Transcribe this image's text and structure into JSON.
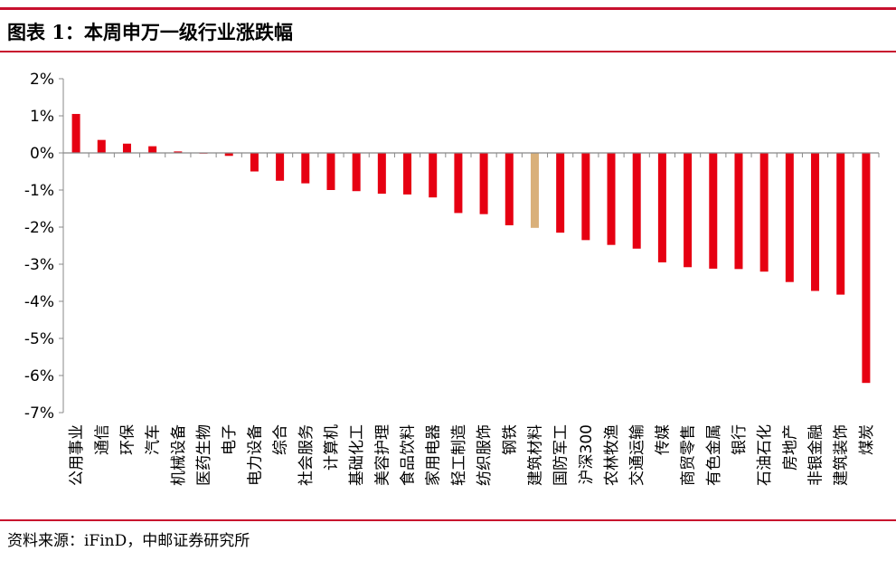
{
  "header": {
    "title": "图表 1：本周申万一级行业涨跌幅"
  },
  "footer": {
    "source": "资料来源：iFinD，中邮证券研究所"
  },
  "colors": {
    "accent": "#c8102e",
    "bar": "#e60012",
    "highlight_bar": "#d9b07a",
    "axis": "#888888"
  },
  "chart_data": {
    "type": "bar",
    "title": "",
    "xlabel": "",
    "ylabel": "",
    "ylim": [
      -7,
      2
    ],
    "yticks": [
      2,
      1,
      0,
      -1,
      -2,
      -3,
      -4,
      -5,
      -6,
      -7
    ],
    "ytick_labels": [
      "2%",
      "1%",
      "0%",
      "-1%",
      "-2%",
      "-3%",
      "-4%",
      "-5%",
      "-6%",
      "-7%"
    ],
    "grid": false,
    "legend": "none",
    "highlight_category": "建筑材料",
    "categories": [
      "公用事业",
      "通信",
      "环保",
      "汽车",
      "机械设备",
      "医药生物",
      "电子",
      "电力设备",
      "综合",
      "社会服务",
      "计算机",
      "基础化工",
      "美容护理",
      "食品饮料",
      "家用电器",
      "轻工制造",
      "纺织服饰",
      "钢铁",
      "建筑材料",
      "国防军工",
      "沪深300",
      "农林牧渔",
      "交通运输",
      "传媒",
      "商贸零售",
      "有色金属",
      "银行",
      "石油石化",
      "房地产",
      "非银金融",
      "建筑装饰",
      "煤炭"
    ],
    "values": [
      1.05,
      0.35,
      0.25,
      0.18,
      0.04,
      0.0,
      -0.08,
      -0.5,
      -0.75,
      -0.82,
      -1.0,
      -1.03,
      -1.1,
      -1.12,
      -1.2,
      -1.62,
      -1.65,
      -1.95,
      -2.02,
      -2.15,
      -2.35,
      -2.48,
      -2.58,
      -2.95,
      -3.08,
      -3.12,
      -3.13,
      -3.2,
      -3.48,
      -3.72,
      -3.82,
      -6.2
    ]
  }
}
